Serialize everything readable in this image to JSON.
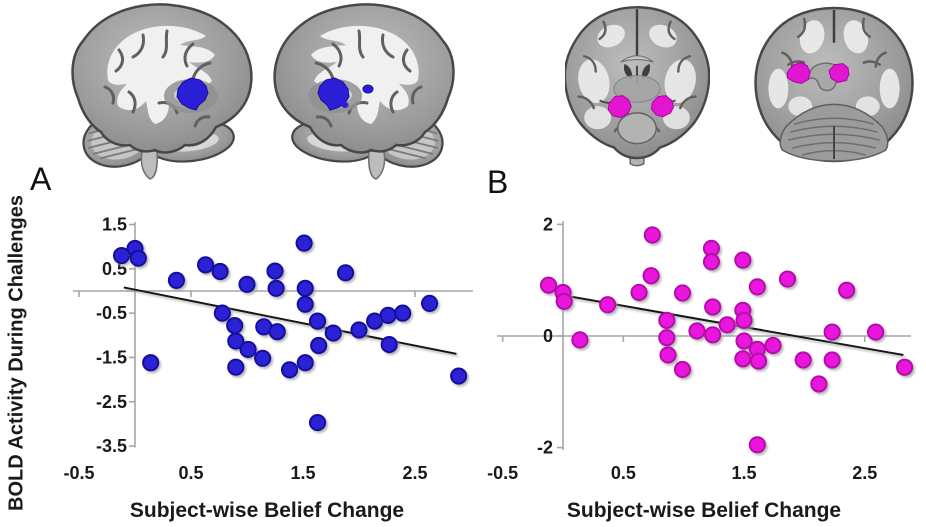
{
  "figure": {
    "panels": [
      {
        "label": "A"
      },
      {
        "label": "B"
      }
    ],
    "brain_images": [
      {
        "view": "sagittal",
        "roi_color_key": "roi_blue"
      },
      {
        "view": "sagittal-mirrored",
        "roi_color_key": "roi_blue"
      },
      {
        "view": "coronal",
        "roi_color_key": "roi_magenta"
      },
      {
        "view": "axial",
        "roi_color_key": "roi_magenta"
      }
    ]
  },
  "colors": {
    "roi_blue": "#2a1fd6",
    "roi_magenta": "#e215d2",
    "axis_gray": "#a6a6a6",
    "trend_black": "#141414",
    "text": "#1a1a1a"
  },
  "chart_data": [
    {
      "type": "scatter",
      "panel": "A",
      "xlabel": "Subject-wise Belief Change",
      "ylabel": "BOLD Activity During Challenges",
      "xlim": [
        -0.55,
        2.95
      ],
      "ylim": [
        -3.5,
        1.5
      ],
      "x_ticks": [
        "-0.5",
        "0.5",
        "1.5",
        "2.5"
      ],
      "y_ticks": [
        "1.5",
        "0.5",
        "-0.5",
        "-1.5",
        "-2.5",
        "-3.5"
      ],
      "grid": false,
      "legend": "none",
      "marker_color": "#2a21d4",
      "marker_edge": "#16109c",
      "trendline": [
        [
          -0.1,
          0.08
        ],
        [
          2.87,
          -1.42
        ]
      ],
      "points": [
        [
          -0.12,
          0.8
        ],
        [
          0.0,
          0.96
        ],
        [
          0.03,
          0.74
        ],
        [
          0.14,
          -1.62
        ],
        [
          0.37,
          0.24
        ],
        [
          0.63,
          0.59
        ],
        [
          0.76,
          0.44
        ],
        [
          0.78,
          -0.5
        ],
        [
          0.89,
          -0.78
        ],
        [
          0.9,
          -1.13
        ],
        [
          0.9,
          -1.72
        ],
        [
          1.0,
          0.15
        ],
        [
          1.01,
          -1.32
        ],
        [
          1.15,
          -0.81
        ],
        [
          1.14,
          -1.52
        ],
        [
          1.25,
          0.45
        ],
        [
          1.26,
          0.06
        ],
        [
          1.27,
          -0.92
        ],
        [
          1.38,
          -1.78
        ],
        [
          1.51,
          1.08
        ],
        [
          1.52,
          0.06
        ],
        [
          1.52,
          -0.3
        ],
        [
          1.52,
          -1.62
        ],
        [
          1.63,
          -0.68
        ],
        [
          1.64,
          -1.23
        ],
        [
          1.63,
          -2.97
        ],
        [
          1.77,
          -0.95
        ],
        [
          1.88,
          0.41
        ],
        [
          2.0,
          -0.88
        ],
        [
          2.14,
          -0.68
        ],
        [
          2.26,
          -0.55
        ],
        [
          2.27,
          -1.21
        ],
        [
          2.39,
          -0.5
        ],
        [
          2.63,
          -0.28
        ],
        [
          2.89,
          -1.92
        ]
      ]
    },
    {
      "type": "scatter",
      "panel": "B",
      "xlabel": "Subject-wise Belief Change",
      "ylabel": "",
      "xlim": [
        -0.55,
        2.95
      ],
      "ylim": [
        -2,
        2
      ],
      "x_ticks": [
        "-0.5",
        "0.5",
        "1.5",
        "2.5"
      ],
      "y_ticks": [
        "2",
        "0",
        "-2"
      ],
      "grid": false,
      "legend": "none",
      "marker_color": "#ea16dd",
      "marker_edge": "#b30ba9",
      "trendline": [
        [
          0.0,
          0.73
        ],
        [
          2.82,
          -0.34
        ]
      ],
      "points": [
        [
          -0.12,
          0.91
        ],
        [
          0.0,
          0.78
        ],
        [
          0.01,
          0.62
        ],
        [
          0.14,
          -0.07
        ],
        [
          0.37,
          0.56
        ],
        [
          0.63,
          0.78
        ],
        [
          0.74,
          1.81
        ],
        [
          0.73,
          1.08
        ],
        [
          0.86,
          0.28
        ],
        [
          0.86,
          -0.03
        ],
        [
          0.87,
          -0.34
        ],
        [
          0.99,
          0.77
        ],
        [
          0.99,
          -0.6
        ],
        [
          1.11,
          0.09
        ],
        [
          1.23,
          1.57
        ],
        [
          1.23,
          1.33
        ],
        [
          1.24,
          0.52
        ],
        [
          1.24,
          0.02
        ],
        [
          1.36,
          0.2
        ],
        [
          1.49,
          1.36
        ],
        [
          1.49,
          0.46
        ],
        [
          1.5,
          0.28
        ],
        [
          1.5,
          -0.09
        ],
        [
          1.49,
          -0.41
        ],
        [
          1.61,
          0.88
        ],
        [
          1.61,
          -0.24
        ],
        [
          1.62,
          -0.45
        ],
        [
          1.61,
          -1.95
        ],
        [
          1.74,
          -0.17
        ],
        [
          1.86,
          1.02
        ],
        [
          1.99,
          -0.43
        ],
        [
          2.12,
          -0.86
        ],
        [
          2.23,
          0.07
        ],
        [
          2.23,
          -0.43
        ],
        [
          2.35,
          0.82
        ],
        [
          2.59,
          0.07
        ],
        [
          2.83,
          -0.56
        ]
      ]
    }
  ]
}
